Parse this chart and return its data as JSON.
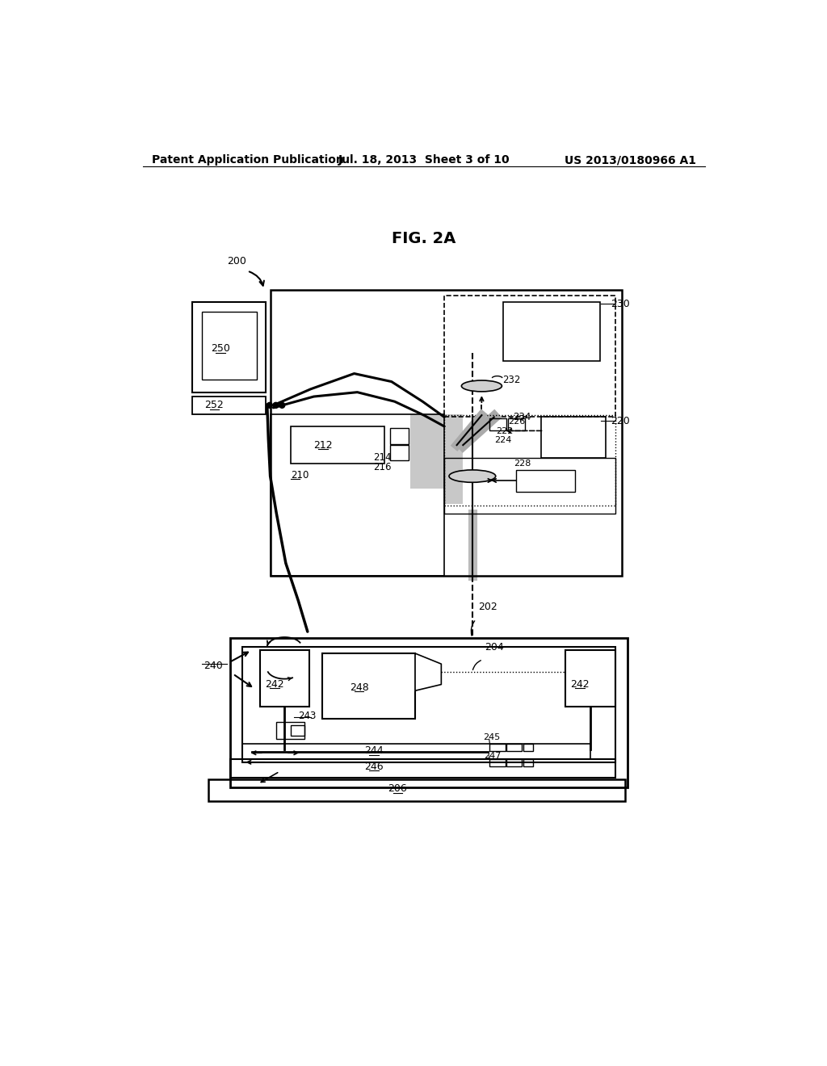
{
  "header_left": "Patent Application Publication",
  "header_center": "Jul. 18, 2013  Sheet 3 of 10",
  "header_right": "US 2013/0180966 A1",
  "title": "FIG. 2A",
  "bg_color": "#ffffff"
}
